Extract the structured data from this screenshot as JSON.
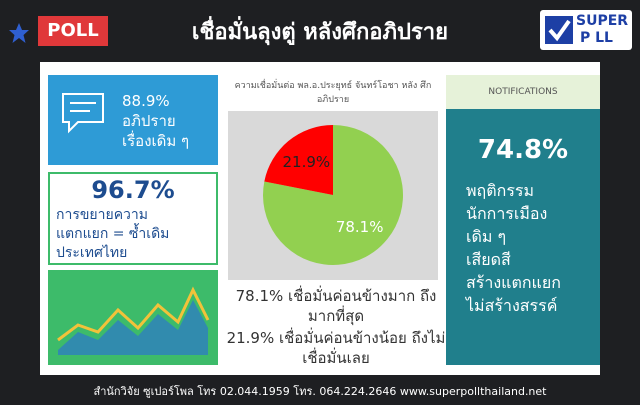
{
  "header": {
    "badge": "POLL",
    "title": "เชื่อมั่นลุงตู่ หลังศึกอภิปราย",
    "logo_top": "SUPER",
    "logo_bottom": "P LL"
  },
  "left_top": {
    "percent": "88.9%",
    "lines": [
      "อภิปราย",
      "เรื่องเดิม ๆ"
    ]
  },
  "left_middle": {
    "percent": "96.7%",
    "lines": [
      "การขยายความ",
      "แตกแยก = ซ้ำเดิม",
      "ประเทศไทย"
    ]
  },
  "chart_data": {
    "type": "pie",
    "title": "ความเชื่อมั่นต่อ พล.อ.ประยุทธ์ จันทร์โอชา หลัง ศึกอภิปราย",
    "categories": [
      "เชื่อมั่นค่อนข้างมาก ถึงมากที่สุด",
      "เชื่อมั่นค่อนข้างน้อย ถึงไม่เชื่อมั่นเลย"
    ],
    "values": [
      78.1,
      21.9
    ],
    "value_labels": [
      "78.1%",
      "21.9%"
    ],
    "colors": [
      "#92d050",
      "#ff0000"
    ]
  },
  "right": {
    "header": "NOTIFICATIONS",
    "percent": "74.8%",
    "lines": [
      "พฤติกรรม",
      "นักการเมือง",
      "เดิม ๆ",
      "เสียดสี",
      "สร้างแตกแยก",
      "ไม่สร้างสรรค์"
    ]
  },
  "footer": "สำนักวิจัย ซูเปอร์โพล โทร 02.044.1959 โทร. 064.224.2646 www.superpollthailand.net"
}
